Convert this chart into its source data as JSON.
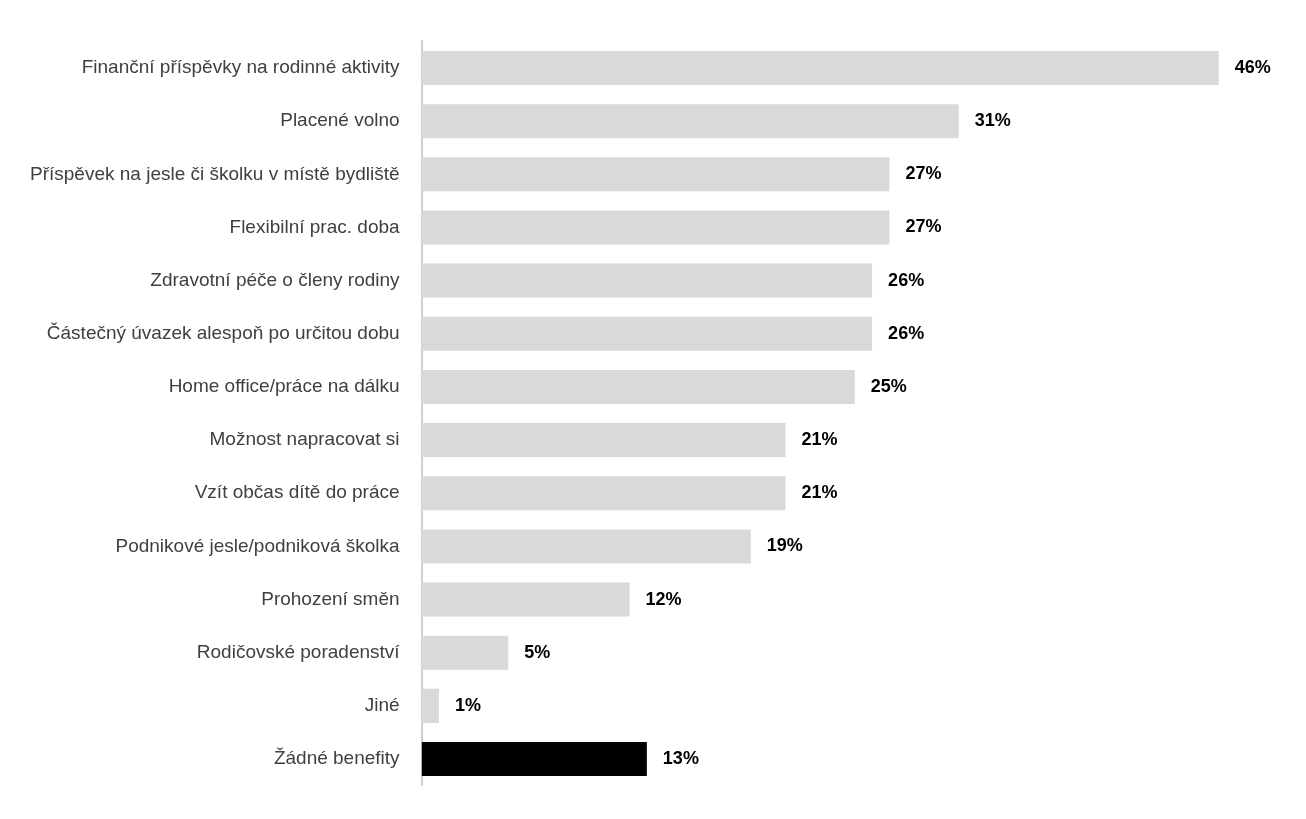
{
  "chart_data": {
    "type": "bar",
    "orientation": "horizontal",
    "categories": [
      "Finanční příspěvky na rodinné aktivity",
      "Placené volno",
      "Příspěvek na jesle či školku v místě bydliště",
      "Flexibilní prac. doba",
      "Zdravotní péče o členy rodiny",
      "Částečný úvazek alespoň po určitou dobu",
      "Home office/práce na dálku",
      "Možnost napracovat si",
      "Vzít občas dítě do práce",
      "Podnikové jesle/podniková školka",
      "Prohození směn",
      "Rodičovské poradenství",
      "Jiné",
      "Žádné benefity"
    ],
    "values": [
      46,
      31,
      27,
      27,
      26,
      26,
      25,
      21,
      21,
      19,
      12,
      5,
      1,
      13
    ],
    "colors": [
      "#d9d9d9",
      "#d9d9d9",
      "#d9d9d9",
      "#d9d9d9",
      "#d9d9d9",
      "#d9d9d9",
      "#d9d9d9",
      "#d9d9d9",
      "#d9d9d9",
      "#d9d9d9",
      "#d9d9d9",
      "#d9d9d9",
      "#d9d9d9",
      "#000000"
    ],
    "value_labels": [
      "46%",
      "31%",
      "27%",
      "27%",
      "26%",
      "26%",
      "25%",
      "21%",
      "21%",
      "19%",
      "12%",
      "5%",
      "1%",
      "13%"
    ],
    "tick_labels": "y"
  }
}
